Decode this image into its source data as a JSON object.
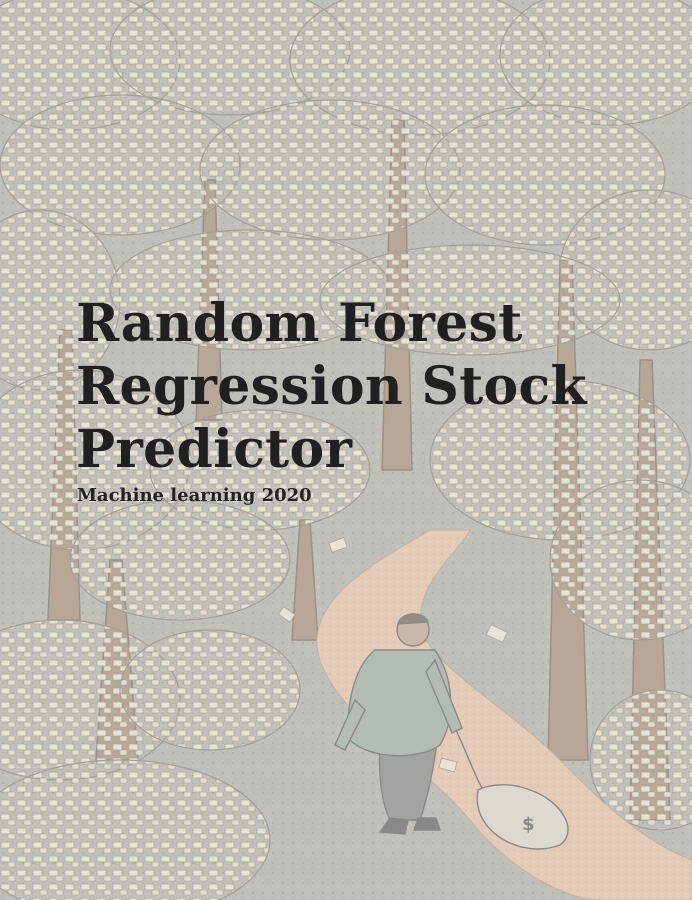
{
  "cover": {
    "title_lines": [
      "Random Forest",
      "Regression Stock",
      "Predictor"
    ],
    "subtitle": "Machine learning 2020",
    "illustration": {
      "subject": "man-dragging-money-bag-through-money-tree-forest",
      "colors": {
        "background": "#bdbdba",
        "foliage": "#e6dcc2",
        "trunk": "#8a6a4a",
        "path": "#e8b896",
        "coat": "#7f9486",
        "bag": "#d8d2c2",
        "ink": "#2a2a2a"
      }
    }
  }
}
